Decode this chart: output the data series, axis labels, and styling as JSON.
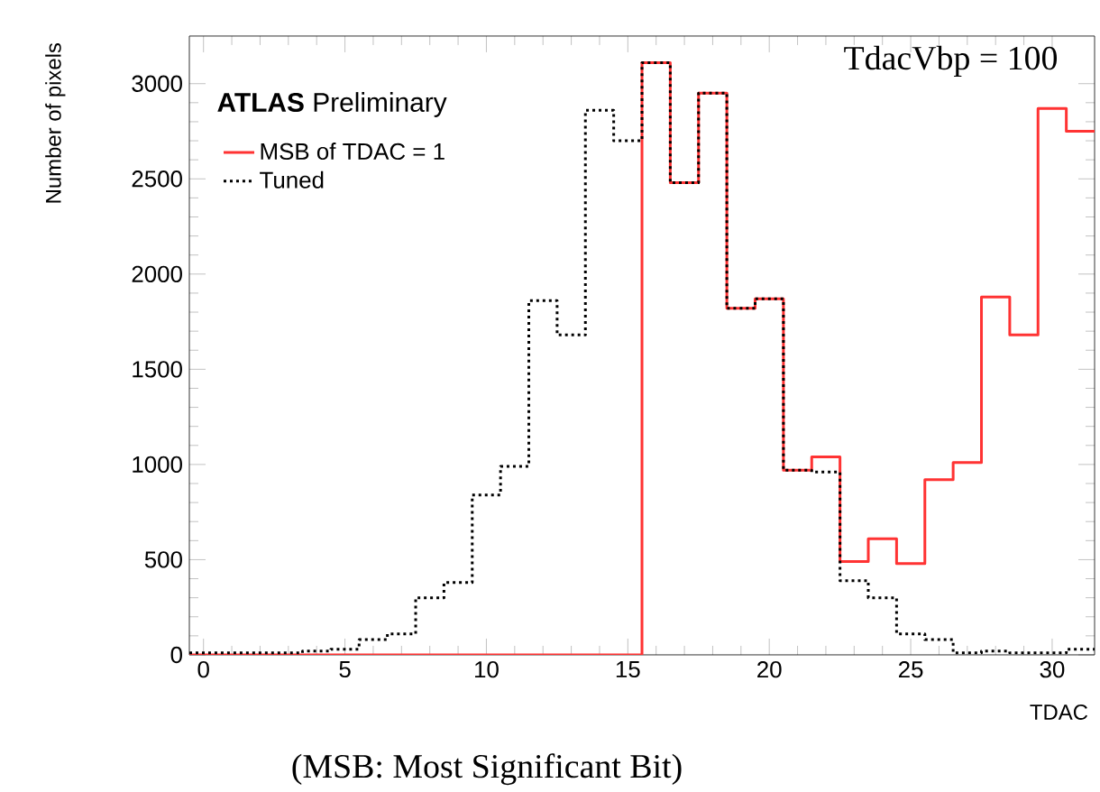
{
  "chart_data": {
    "type": "histogram",
    "xlabel": "TDAC",
    "ylabel": "Number of pixels",
    "bins": [
      -0.5,
      0.5,
      1.5,
      2.5,
      3.5,
      4.5,
      5.5,
      6.5,
      7.5,
      8.5,
      9.5,
      10.5,
      11.5,
      12.5,
      13.5,
      14.5,
      15.5,
      16.5,
      17.5,
      18.5,
      19.5,
      20.5,
      21.5,
      22.5,
      23.5,
      24.5,
      25.5,
      26.5,
      27.5,
      28.5,
      29.5,
      30.5,
      31.5
    ],
    "series": [
      {
        "name": "Tuned",
        "color": "#000000",
        "line_style": "dotted",
        "values": [
          10,
          10,
          10,
          10,
          20,
          30,
          80,
          110,
          300,
          380,
          840,
          990,
          1860,
          1680,
          2860,
          2700,
          3110,
          2480,
          2950,
          1820,
          1870,
          970,
          960,
          390,
          300,
          110,
          80,
          10,
          20,
          10,
          10,
          30
        ]
      },
      {
        "name": "MSB of TDAC = 1",
        "color": "#ff3333",
        "line_style": "solid",
        "values": [
          0,
          0,
          0,
          0,
          0,
          0,
          0,
          0,
          0,
          0,
          0,
          0,
          0,
          0,
          0,
          0,
          3110,
          2480,
          2950,
          1820,
          1870,
          970,
          1040,
          490,
          610,
          480,
          920,
          1010,
          1880,
          1680,
          2870,
          2750
        ]
      }
    ],
    "xlim": [
      -0.5,
      31.5
    ],
    "ylim": [
      0,
      3250
    ],
    "xticks": [
      0,
      5,
      10,
      15,
      20,
      25,
      30
    ],
    "yticks": [
      0,
      500,
      1000,
      1500,
      2000,
      2500,
      3000
    ],
    "grid": false,
    "legend": "top left",
    "annotations": [
      "**ATLAS** Preliminary",
      "TdacVbp = 100",
      "(MSB: Most Significant Bit)"
    ]
  }
}
